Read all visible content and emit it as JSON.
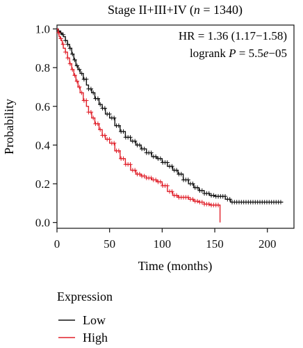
{
  "chart_data": {
    "type": "line",
    "title_prefix": "Stage II+III+IV (",
    "title_n": "n",
    "title_suffix": " = 1340)",
    "xlabel": "Time (months)",
    "ylabel": "Probability",
    "xlim": [
      0,
      220
    ],
    "ylim": [
      0,
      1.0
    ],
    "xticks": [
      "0",
      "50",
      "100",
      "150",
      "200"
    ],
    "xtick_values": [
      0,
      50,
      100,
      150,
      200
    ],
    "yticks": [
      "0.0",
      "0.2",
      "0.4",
      "0.6",
      "0.8",
      "1.0"
    ],
    "ytick_values": [
      0,
      0.2,
      0.4,
      0.6,
      0.8,
      1.0
    ],
    "grid": false,
    "annotations": {
      "hr": "HR = 1.36 (1.17−1.58)",
      "logrank_prefix": "logrank ",
      "logrank_p": "P",
      "logrank_eq": " = 5.5",
      "logrank_e": "e",
      "logrank_exp": "−05"
    },
    "legend": {
      "title": "Expression",
      "placement": "bottom-left",
      "entries": [
        "Low",
        "High"
      ]
    },
    "series": [
      {
        "name": "Low",
        "color": "#111111",
        "x": [
          0,
          1,
          2,
          3,
          4,
          5,
          6,
          8,
          10,
          12,
          14,
          16,
          18,
          20,
          22,
          25,
          28,
          30,
          33,
          36,
          40,
          43,
          46,
          50,
          55,
          60,
          65,
          70,
          75,
          80,
          85,
          90,
          95,
          100,
          105,
          110,
          115,
          120,
          125,
          130,
          135,
          140,
          145,
          150,
          155,
          160,
          165,
          170,
          175,
          180,
          190,
          200,
          210,
          215
        ],
        "y": [
          1.0,
          0.99,
          0.985,
          0.98,
          0.975,
          0.97,
          0.96,
          0.94,
          0.92,
          0.9,
          0.87,
          0.84,
          0.81,
          0.79,
          0.77,
          0.74,
          0.71,
          0.69,
          0.67,
          0.64,
          0.61,
          0.59,
          0.56,
          0.54,
          0.5,
          0.47,
          0.44,
          0.42,
          0.4,
          0.38,
          0.36,
          0.34,
          0.33,
          0.31,
          0.29,
          0.27,
          0.25,
          0.22,
          0.2,
          0.18,
          0.165,
          0.15,
          0.14,
          0.135,
          0.135,
          0.12,
          0.105,
          0.105,
          0.105,
          0.105,
          0.105,
          0.105,
          0.105,
          0.105
        ]
      },
      {
        "name": "High",
        "color": "#e0202a",
        "x": [
          0,
          1,
          2,
          3,
          4,
          5,
          6,
          8,
          10,
          12,
          14,
          16,
          18,
          20,
          22,
          25,
          28,
          30,
          33,
          36,
          40,
          43,
          46,
          50,
          55,
          60,
          65,
          70,
          75,
          80,
          85,
          90,
          95,
          100,
          105,
          110,
          115,
          120,
          125,
          130,
          135,
          140,
          145,
          150,
          154,
          155
        ],
        "y": [
          1.0,
          0.98,
          0.96,
          0.95,
          0.94,
          0.92,
          0.9,
          0.88,
          0.85,
          0.82,
          0.79,
          0.76,
          0.73,
          0.7,
          0.67,
          0.63,
          0.6,
          0.57,
          0.54,
          0.51,
          0.48,
          0.45,
          0.43,
          0.41,
          0.37,
          0.33,
          0.3,
          0.27,
          0.25,
          0.24,
          0.23,
          0.22,
          0.21,
          0.19,
          0.16,
          0.14,
          0.13,
          0.13,
          0.12,
          0.11,
          0.105,
          0.095,
          0.09,
          0.09,
          0.09,
          0.0
        ]
      }
    ]
  }
}
